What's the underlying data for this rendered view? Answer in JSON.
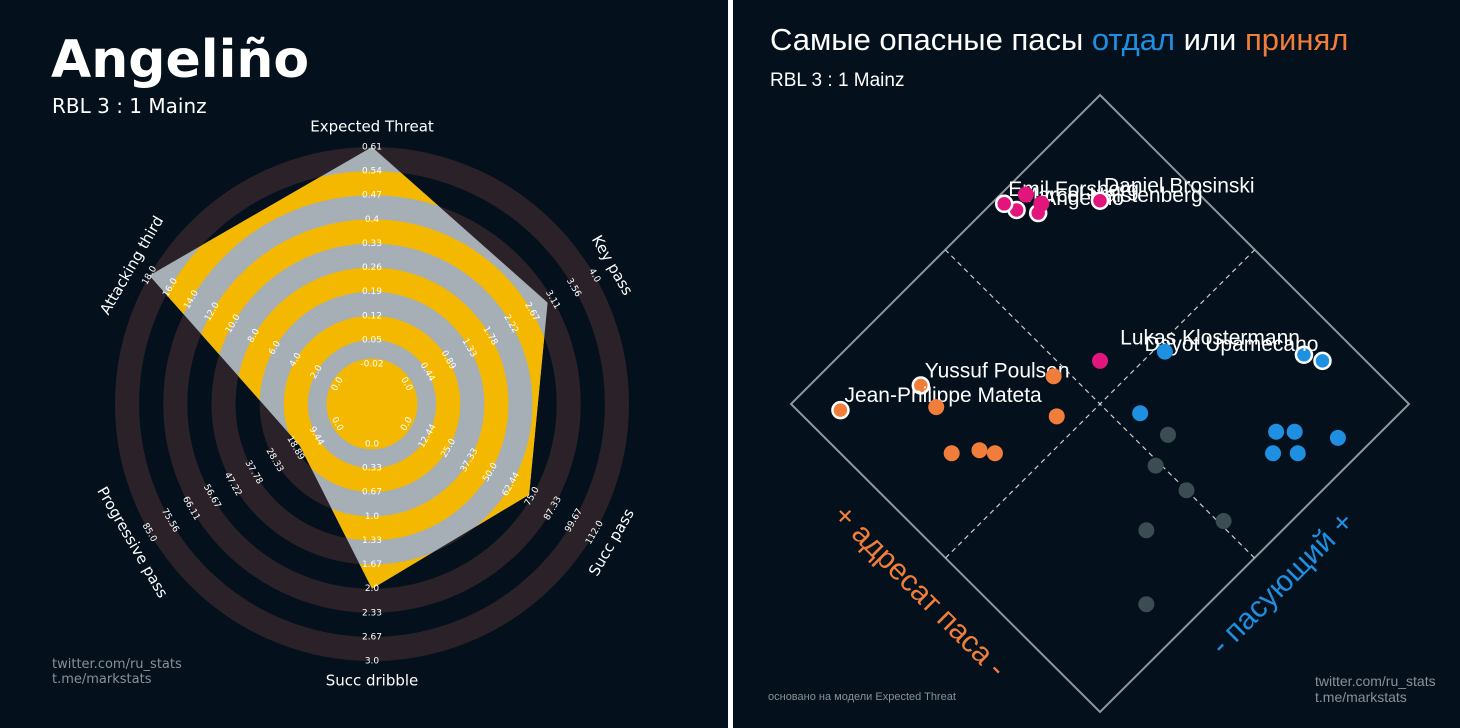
{
  "left": {
    "title": "Angeliño",
    "subtitle": "RBL 3 : 1 Mainz",
    "credit": [
      "twitter.com/ru_stats",
      "t.me/markstats"
    ]
  },
  "right": {
    "title_parts": [
      "Самые опасные пасы ",
      "отдал",
      " или ",
      "принял"
    ],
    "subtitle": "RBL 3 : 1 Mainz",
    "axis_receiver": "+ адресат паса -",
    "axis_passer": "- пасующий +",
    "note": "основано на модели Expected Threat",
    "credit": [
      "twitter.com/ru_stats",
      "t.me/markstats"
    ]
  },
  "colors": {
    "background": "#04101b",
    "ring_dark": "#2a2228",
    "ring_yellow": "#f4b800",
    "polygon": "#a5afb5",
    "gave": "#1e8fe1",
    "received": "#f07e3a",
    "both": "#e2157d",
    "neutral": "#3b4c52"
  },
  "chart_data": [
    {
      "type": "radar",
      "axes": [
        {
          "label": "Expected Threat",
          "ticks": [
            "-0.02",
            "0.05",
            "0.12",
            "0.19",
            "0.26",
            "0.33",
            "0.4",
            "0.47",
            "0.54",
            "0.61"
          ],
          "value": 0.61
        },
        {
          "label": "Key pass",
          "ticks": [
            "0.0",
            "0.44",
            "0.89",
            "1.33",
            "1.78",
            "2.22",
            "2.67",
            "3.11",
            "3.56",
            "4.0"
          ],
          "value": 3.0
        },
        {
          "label": "Succ pass",
          "ticks": [
            "0.0",
            "12.44",
            "25.0",
            "37.33",
            "50.0",
            "62.44",
            "75.0",
            "87.33",
            "99.67",
            "112.0"
          ],
          "value": 73.0
        },
        {
          "label": "Succ dribble",
          "ticks": [
            "0.0",
            "0.33",
            "0.67",
            "1.0",
            "1.33",
            "1.67",
            "2.0",
            "2.33",
            "2.67",
            "3.0"
          ],
          "value": 2.0
        },
        {
          "label": "Progressive pass",
          "ticks": [
            "0.0",
            "9.44",
            "18.89",
            "28.33",
            "37.78",
            "47.22",
            "56.67",
            "66.11",
            "75.56",
            "85.0"
          ],
          "value": 17.0
        },
        {
          "label": "Attacking third",
          "ticks": [
            "0.0",
            "2.0",
            "4.0",
            "6.0",
            "8.0",
            "10.0",
            "12.0",
            "14.0",
            "16.0",
            "18.0"
          ],
          "value": 18.0
        }
      ]
    },
    {
      "type": "scatter",
      "xlabel": "+ адресат паса -",
      "ylabel": "- пасующий +",
      "xlim": [
        0,
        10
      ],
      "ylim": [
        0,
        10
      ],
      "series": [
        {
          "name": "отдал",
          "group": "gave",
          "points": [
            {
              "label": "Lukas Klostermann",
              "x": 9.1,
              "y": 2.5
            },
            {
              "label": "Dayot Upamecano",
              "x": 9.3,
              "y": 2.1
            },
            {
              "label": "",
              "x": 5.5,
              "y": 4.2
            },
            {
              "label": "",
              "x": 6.9,
              "y": 4.8
            },
            {
              "label": "",
              "x": 7.0,
              "y": 1.4
            },
            {
              "label": "",
              "x": 7.4,
              "y": 1.0
            },
            {
              "label": "",
              "x": 7.7,
              "y": 1.4
            },
            {
              "label": "",
              "x": 8.3,
              "y": 0.6
            },
            {
              "label": "",
              "x": 7.4,
              "y": 1.7
            }
          ]
        },
        {
          "name": "принял",
          "group": "received",
          "points": [
            {
              "label": "Yussuf Poulsen",
              "x": 2.4,
              "y": 8.2
            },
            {
              "label": "Jean-Philippe Mateta",
              "x": 0.7,
              "y": 9.1
            },
            {
              "label": "",
              "x": 2.3,
              "y": 7.6
            },
            {
              "label": "",
              "x": 1.8,
              "y": 6.6
            },
            {
              "label": "",
              "x": 2.3,
              "y": 6.2
            },
            {
              "label": "",
              "x": 2.5,
              "y": 5.9
            },
            {
              "label": "",
              "x": 4.7,
              "y": 6.2
            },
            {
              "label": "",
              "x": 4.1,
              "y": 5.5
            }
          ]
        },
        {
          "name": "both",
          "group": "both",
          "points": [
            {
              "label": "Angeliño",
              "x": 7.1,
              "y": 9.1
            },
            {
              "label": "Marcel Halstenberg",
              "x": 6.8,
              "y": 9.5
            },
            {
              "label": "Emil Forsberg",
              "x": 6.7,
              "y": 9.8
            },
            {
              "label": "Daniel Brosinski",
              "x": 8.3,
              "y": 8.3
            },
            {
              "label": "",
              "x": 7.2,
              "y": 9.6
            },
            {
              "label": "",
              "x": 7.3,
              "y": 9.2
            },
            {
              "label": "",
              "x": 5.7,
              "y": 5.7
            }
          ]
        },
        {
          "name": "other",
          "group": "neutral",
          "points": [
            {
              "label": "",
              "x": 5.6,
              "y": 3.4
            },
            {
              "label": "",
              "x": 4.9,
              "y": 3.1
            },
            {
              "label": "",
              "x": 5.0,
              "y": 2.2
            },
            {
              "label": "",
              "x": 5.1,
              "y": 1.1
            },
            {
              "label": "",
              "x": 3.7,
              "y": 2.2
            },
            {
              "label": "",
              "x": 2.5,
              "y": 1.0
            }
          ]
        }
      ]
    }
  ]
}
